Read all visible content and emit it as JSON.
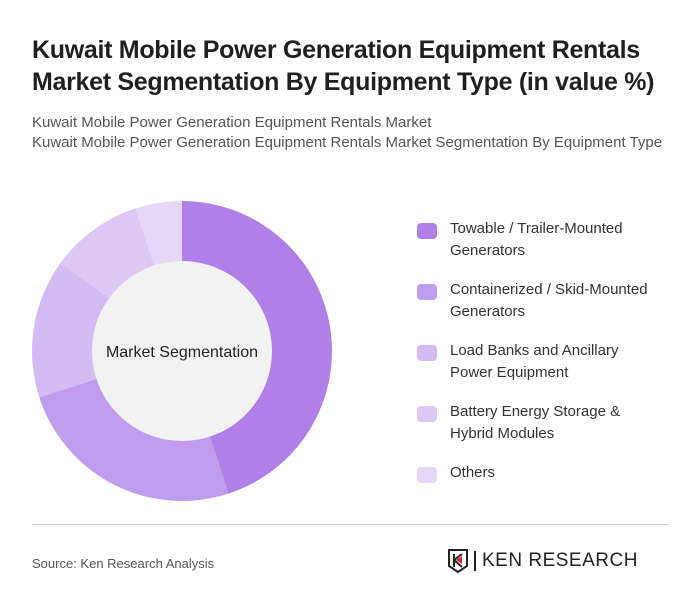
{
  "header": {
    "title": "Kuwait Mobile Power Generation Equipment Rentals Market Segmentation By Equipment Type (in value %)",
    "subtitle_line1": "Kuwait Mobile Power Generation Equipment Rentals Market",
    "subtitle_line2": "Kuwait Mobile Power Generation Equipment Rentals Market Segmentation By Equipment Type"
  },
  "chart_data": {
    "type": "pie",
    "variant": "donut",
    "center_label": "Market Segmentation",
    "categories": [
      "Towable / Trailer-Mounted Generators",
      "Containerized / Skid-Mounted Generators",
      "Load Banks and Ancillary Power Equipment",
      "Battery Energy Storage & Hybrid Modules",
      "Others"
    ],
    "values": [
      45,
      25,
      15,
      10,
      5
    ],
    "colors": [
      "#b07fe8",
      "#c09cee",
      "#d5bbf3",
      "#ddc8f5",
      "#e6d7f8"
    ],
    "legend_position": "right"
  },
  "footer": {
    "source": "Source: Ken Research Analysis",
    "logo_text": "KEN RESEARCH"
  }
}
